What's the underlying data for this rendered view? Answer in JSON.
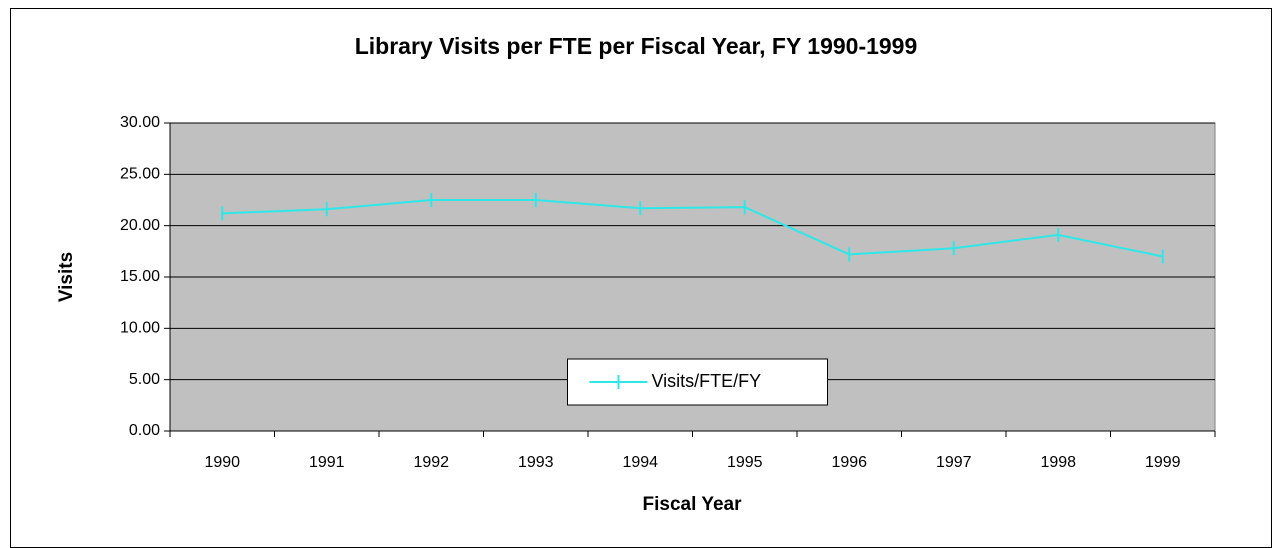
{
  "chart_data": {
    "type": "line",
    "title": "Library Visits per FTE per Fiscal Year, FY 1990-1999",
    "x_label": "Fiscal Year",
    "y_label": "Visits",
    "categories": [
      "1990",
      "1991",
      "1992",
      "1993",
      "1994",
      "1995",
      "1996",
      "1997",
      "1998",
      "1999"
    ],
    "series": [
      {
        "name": "Visits/FTE/FY",
        "color": "#2ee8e8",
        "values": [
          21.2,
          21.6,
          22.5,
          22.5,
          21.7,
          21.8,
          17.2,
          17.8,
          19.1,
          17.0
        ]
      }
    ],
    "ylim": [
      0,
      30
    ],
    "yticks": [
      {
        "value": 0,
        "label": "0.00"
      },
      {
        "value": 5,
        "label": "5.00"
      },
      {
        "value": 10,
        "label": "10.00"
      },
      {
        "value": 15,
        "label": "15.00"
      },
      {
        "value": 20,
        "label": "20.00"
      },
      {
        "value": 25,
        "label": "25.00"
      },
      {
        "value": 30,
        "label": "30.00"
      }
    ],
    "grid": true,
    "legend": "bottom"
  }
}
